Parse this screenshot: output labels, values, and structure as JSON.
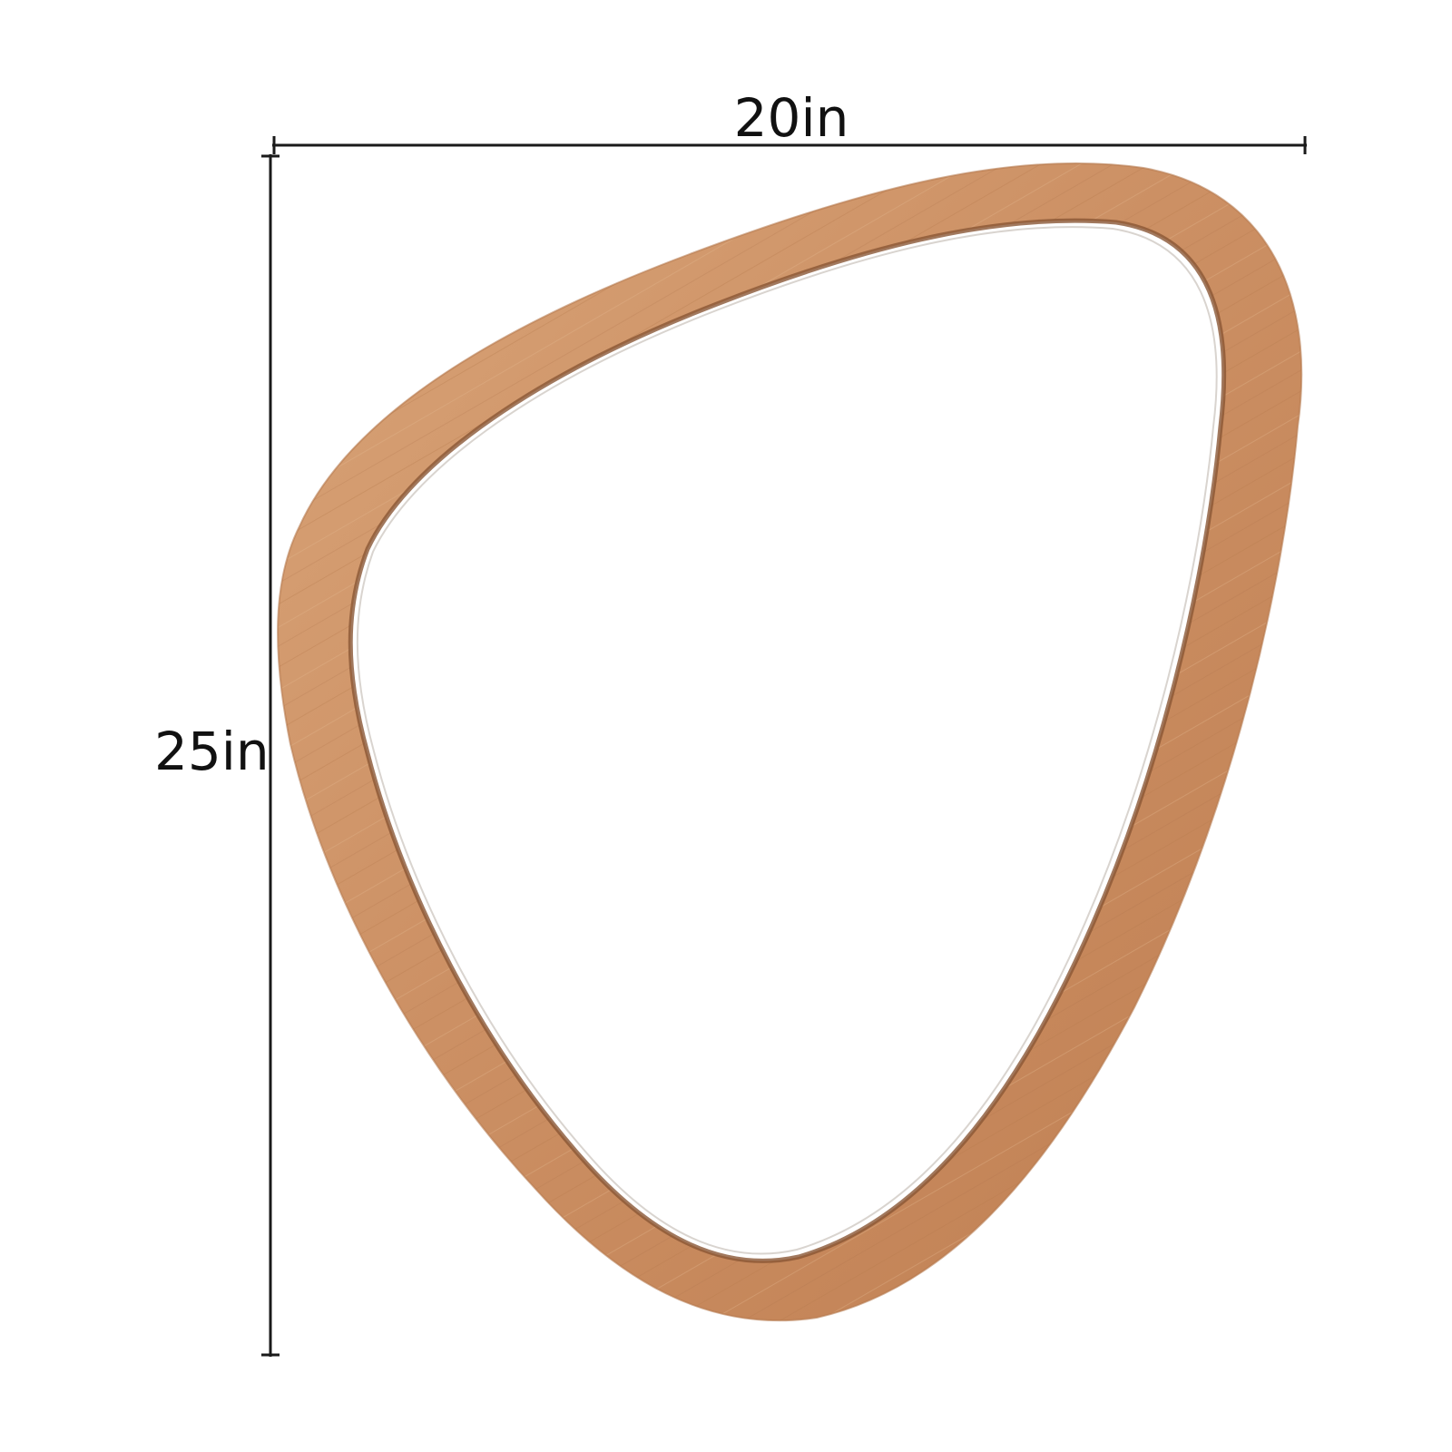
{
  "dimensions": {
    "width_label": "20in",
    "height_label": "25in"
  },
  "colors": {
    "frame_wood": "#c98a5c",
    "frame_wood_light": "#dcaa80",
    "frame_wood_dark": "#a86a42",
    "frame_inner_edge": "#8a5634",
    "glass": "#ffffff",
    "dimension_line": "#1a1a1a",
    "label_text": "#111111"
  }
}
